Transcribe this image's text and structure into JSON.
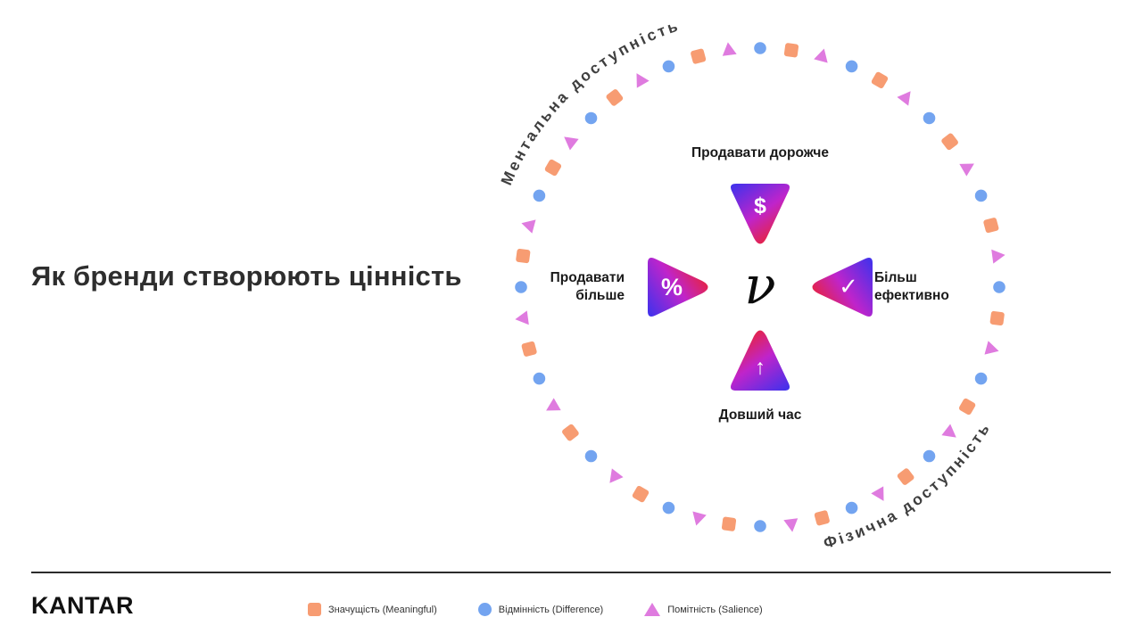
{
  "title": "Як бренди створюють цінність",
  "diagram": {
    "center_symbol": "ν",
    "arc_labels": {
      "top_left": "Ментальна доступність",
      "bottom_right": "Фізична доступність"
    },
    "petals": [
      {
        "id": "top",
        "label": "Продавати дорожче",
        "icon": "$"
      },
      {
        "id": "left",
        "label_line1": "Продавати",
        "label_line2": "більше",
        "icon": "%"
      },
      {
        "id": "right",
        "label_line1": "Більш",
        "label_line2": "ефективно",
        "icon": "✓"
      },
      {
        "id": "bottom",
        "label": "Довший час",
        "icon": "↑"
      }
    ],
    "gradient": {
      "from": "#4331EB",
      "mid": "#BF24CB",
      "to": "#EE2326"
    },
    "ring": {
      "shape_count": 48,
      "colors": {
        "square": "#F79C72",
        "circle": "#73A4F0",
        "triangle": "#DF7BDF"
      }
    }
  },
  "footer": {
    "logo": "KANTAR",
    "legend": [
      {
        "shape": "square",
        "color": "#F79C72",
        "label": "Значущість (Meaningful)"
      },
      {
        "shape": "circle",
        "color": "#73A4F0",
        "label": "Відмінність (Difference)"
      },
      {
        "shape": "triangle",
        "color": "#DF7BDF",
        "label": "Помітність (Salience)"
      }
    ]
  }
}
